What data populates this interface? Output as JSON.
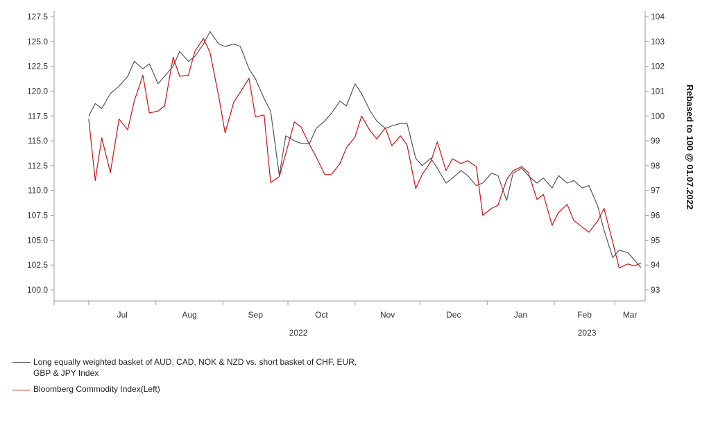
{
  "chart_data": {
    "type": "line",
    "title": "",
    "y_left": {
      "ticks": [
        "100.0",
        "102.5",
        "105.0",
        "107.5",
        "110.0",
        "112.5",
        "115.0",
        "117.5",
        "120.0",
        "122.5",
        "125.0",
        "127.5"
      ],
      "range": [
        100,
        127.5
      ]
    },
    "y_right": {
      "label": "Rebased to 100 @ 01.07.2022",
      "ticks": [
        "93",
        "94",
        "95",
        "96",
        "97",
        "98",
        "99",
        "100",
        "101",
        "102",
        "103",
        "104"
      ],
      "range": [
        93,
        104
      ]
    },
    "x_axis": {
      "months": [
        "Jul",
        "Aug",
        "Sep",
        "Oct",
        "Nov",
        "Dec",
        "Jan",
        "Feb",
        "Mar"
      ],
      "years": [
        "2022",
        "2023"
      ],
      "range": [
        "2022-06-15",
        "2023-03-15"
      ]
    },
    "grid": false,
    "legend_position": "bottom-left",
    "series": [
      {
        "name": "Long equally weighted basket of AUD, CAD, NOK & NZD  vs. short basket of CHF, EUR, GBP & JPY Index",
        "axis": "right",
        "color": "#555555",
        "points": [
          [
            "2022-07-01",
            100.0
          ],
          [
            "2022-07-04",
            100.5
          ],
          [
            "2022-07-07",
            100.3
          ],
          [
            "2022-07-11",
            100.9
          ],
          [
            "2022-07-15",
            101.2
          ],
          [
            "2022-07-19",
            101.6
          ],
          [
            "2022-07-22",
            102.2
          ],
          [
            "2022-07-26",
            101.9
          ],
          [
            "2022-07-29",
            102.1
          ],
          [
            "2022-08-02",
            101.3
          ],
          [
            "2022-08-05",
            101.6
          ],
          [
            "2022-08-09",
            102.0
          ],
          [
            "2022-08-12",
            102.6
          ],
          [
            "2022-08-16",
            102.2
          ],
          [
            "2022-08-19",
            102.4
          ],
          [
            "2022-08-23",
            102.9
          ],
          [
            "2022-08-26",
            103.4
          ],
          [
            "2022-08-30",
            102.9
          ],
          [
            "2022-09-02",
            102.8
          ],
          [
            "2022-09-06",
            102.9
          ],
          [
            "2022-09-09",
            102.8
          ],
          [
            "2022-09-13",
            101.9
          ],
          [
            "2022-09-16",
            101.5
          ],
          [
            "2022-09-20",
            100.7
          ],
          [
            "2022-09-23",
            100.2
          ],
          [
            "2022-09-27",
            97.6
          ],
          [
            "2022-09-30",
            99.2
          ],
          [
            "2022-10-04",
            99.0
          ],
          [
            "2022-10-07",
            98.9
          ],
          [
            "2022-10-11",
            98.9
          ],
          [
            "2022-10-14",
            99.5
          ],
          [
            "2022-10-18",
            99.8
          ],
          [
            "2022-10-21",
            100.1
          ],
          [
            "2022-10-25",
            100.6
          ],
          [
            "2022-10-28",
            100.4
          ],
          [
            "2022-11-01",
            101.3
          ],
          [
            "2022-11-04",
            100.9
          ],
          [
            "2022-11-08",
            100.2
          ],
          [
            "2022-11-11",
            99.8
          ],
          [
            "2022-11-15",
            99.5
          ],
          [
            "2022-11-18",
            99.6
          ],
          [
            "2022-11-22",
            99.7
          ],
          [
            "2022-11-25",
            99.7
          ],
          [
            "2022-11-29",
            98.3
          ],
          [
            "2022-12-02",
            98.0
          ],
          [
            "2022-12-06",
            98.3
          ],
          [
            "2022-12-09",
            97.9
          ],
          [
            "2022-12-13",
            97.3
          ],
          [
            "2022-12-16",
            97.5
          ],
          [
            "2022-12-20",
            97.8
          ],
          [
            "2022-12-23",
            97.6
          ],
          [
            "2022-12-27",
            97.2
          ],
          [
            "2022-12-30",
            97.3
          ],
          [
            "2023-01-03",
            97.7
          ],
          [
            "2023-01-06",
            97.6
          ],
          [
            "2023-01-10",
            96.6
          ],
          [
            "2023-01-13",
            97.7
          ],
          [
            "2023-01-17",
            97.9
          ],
          [
            "2023-01-20",
            97.6
          ],
          [
            "2023-01-24",
            97.3
          ],
          [
            "2023-01-27",
            97.5
          ],
          [
            "2023-01-31",
            97.1
          ],
          [
            "2023-02-03",
            97.6
          ],
          [
            "2023-02-07",
            97.3
          ],
          [
            "2023-02-10",
            97.4
          ],
          [
            "2023-02-14",
            97.1
          ],
          [
            "2023-02-17",
            97.2
          ],
          [
            "2023-02-21",
            96.4
          ],
          [
            "2023-02-24",
            95.4
          ],
          [
            "2023-02-28",
            94.3
          ],
          [
            "2023-03-03",
            94.6
          ],
          [
            "2023-03-07",
            94.5
          ],
          [
            "2023-03-10",
            94.2
          ],
          [
            "2023-03-13",
            93.9
          ]
        ]
      },
      {
        "name": "Bloomberg Commodity Index(Left)",
        "axis": "left",
        "color": "#cc1111",
        "points": [
          [
            "2022-07-01",
            117.2
          ],
          [
            "2022-07-04",
            111.0
          ],
          [
            "2022-07-07",
            115.3
          ],
          [
            "2022-07-11",
            111.8
          ],
          [
            "2022-07-15",
            117.2
          ],
          [
            "2022-07-19",
            116.1
          ],
          [
            "2022-07-22",
            119.0
          ],
          [
            "2022-07-26",
            121.6
          ],
          [
            "2022-07-29",
            117.8
          ],
          [
            "2022-08-02",
            118.0
          ],
          [
            "2022-08-05",
            118.5
          ],
          [
            "2022-08-09",
            123.4
          ],
          [
            "2022-08-12",
            121.5
          ],
          [
            "2022-08-16",
            121.6
          ],
          [
            "2022-08-19",
            124.0
          ],
          [
            "2022-08-23",
            125.3
          ],
          [
            "2022-08-26",
            123.9
          ],
          [
            "2022-08-30",
            119.5
          ],
          [
            "2022-09-02",
            115.8
          ],
          [
            "2022-09-06",
            118.9
          ],
          [
            "2022-09-09",
            119.9
          ],
          [
            "2022-09-13",
            121.3
          ],
          [
            "2022-09-16",
            117.4
          ],
          [
            "2022-09-20",
            117.6
          ],
          [
            "2022-09-23",
            110.8
          ],
          [
            "2022-09-27",
            111.4
          ],
          [
            "2022-09-30",
            113.7
          ],
          [
            "2022-10-04",
            116.9
          ],
          [
            "2022-10-07",
            116.4
          ],
          [
            "2022-10-11",
            114.6
          ],
          [
            "2022-10-14",
            113.4
          ],
          [
            "2022-10-18",
            111.6
          ],
          [
            "2022-10-21",
            111.6
          ],
          [
            "2022-10-25",
            112.7
          ],
          [
            "2022-10-28",
            114.3
          ],
          [
            "2022-11-01",
            115.4
          ],
          [
            "2022-11-04",
            117.5
          ],
          [
            "2022-11-08",
            116.0
          ],
          [
            "2022-11-11",
            115.2
          ],
          [
            "2022-11-15",
            116.3
          ],
          [
            "2022-11-18",
            114.5
          ],
          [
            "2022-11-22",
            115.5
          ],
          [
            "2022-11-25",
            114.6
          ],
          [
            "2022-11-29",
            110.2
          ],
          [
            "2022-12-02",
            111.6
          ],
          [
            "2022-12-06",
            112.9
          ],
          [
            "2022-12-09",
            114.9
          ],
          [
            "2022-12-13",
            112.0
          ],
          [
            "2022-12-16",
            113.2
          ],
          [
            "2022-12-20",
            112.7
          ],
          [
            "2022-12-23",
            113.0
          ],
          [
            "2022-12-27",
            112.4
          ],
          [
            "2022-12-30",
            107.5
          ],
          [
            "2023-01-03",
            108.2
          ],
          [
            "2023-01-06",
            108.5
          ],
          [
            "2023-01-10",
            111.1
          ],
          [
            "2023-01-13",
            112.0
          ],
          [
            "2023-01-17",
            112.4
          ],
          [
            "2023-01-20",
            111.8
          ],
          [
            "2023-01-24",
            109.1
          ],
          [
            "2023-01-27",
            109.6
          ],
          [
            "2023-01-31",
            106.5
          ],
          [
            "2023-02-03",
            107.8
          ],
          [
            "2023-02-07",
            108.6
          ],
          [
            "2023-02-10",
            107.0
          ],
          [
            "2023-02-14",
            106.3
          ],
          [
            "2023-02-17",
            105.8
          ],
          [
            "2023-02-21",
            106.9
          ],
          [
            "2023-02-24",
            108.2
          ],
          [
            "2023-02-28",
            104.8
          ],
          [
            "2023-03-03",
            102.2
          ],
          [
            "2023-03-07",
            102.6
          ],
          [
            "2023-03-10",
            102.4
          ],
          [
            "2023-03-13",
            102.7
          ]
        ]
      }
    ]
  }
}
